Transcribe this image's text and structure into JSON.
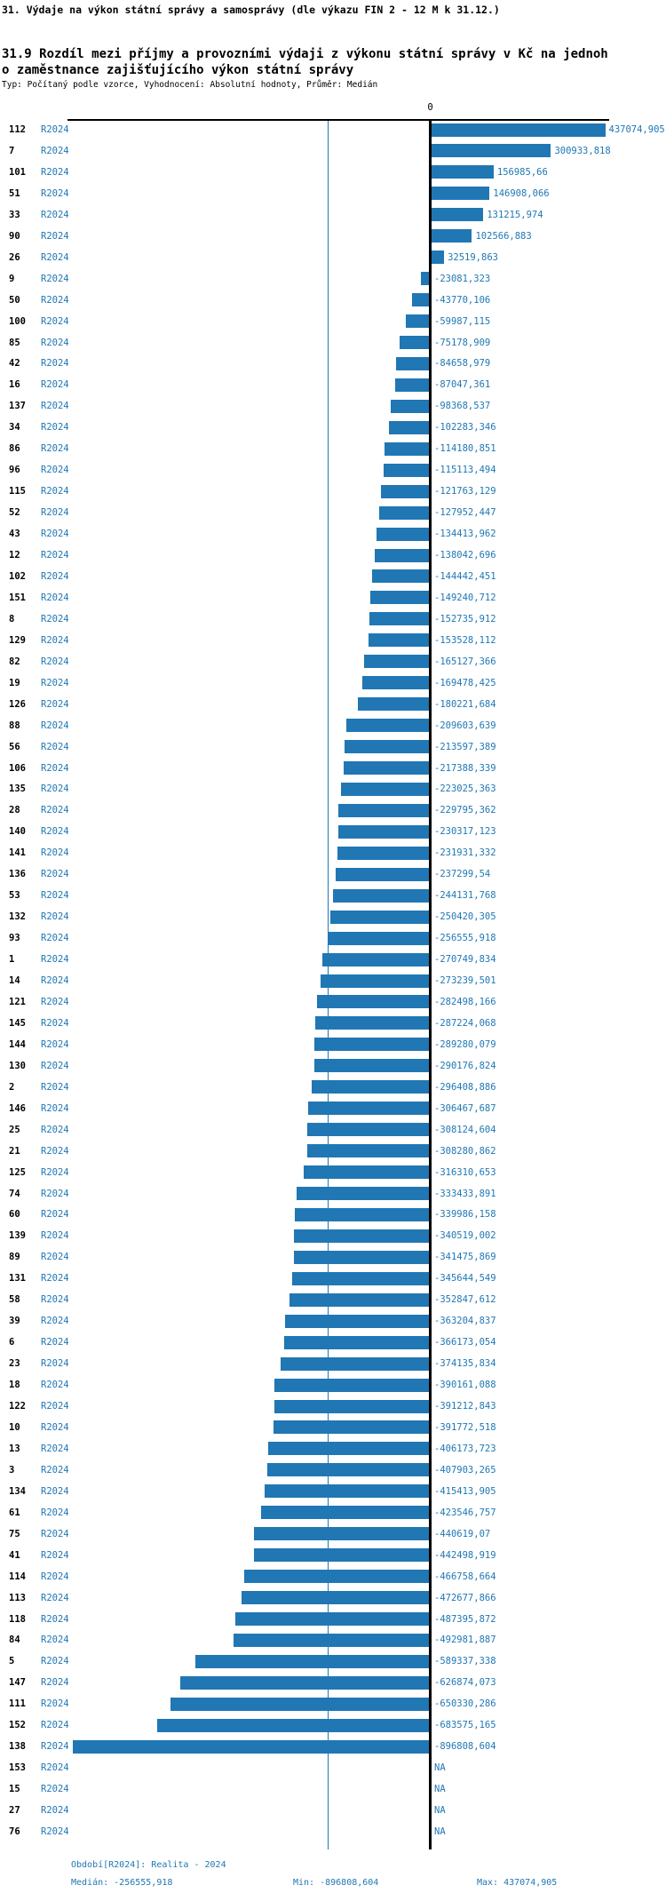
{
  "header": {
    "title": "31. Výdaje na výkon státní správy a samosprávy (dle výkazu FIN 2 - 12 M k 31.12.)",
    "subtitle": "31.9 Rozdíl mezi příjmy a provozními výdaji z výkonu státní správy v Kč na jednoho zaměstnance zajišťujícího výkon státní správy",
    "meta": "Typ: Počítaný podle vzorce, Vyhodnocení: Absolutní hodnoty, Průměr: Medián"
  },
  "axis": {
    "zero_label": "0"
  },
  "footer": {
    "period": "Období[R2024]: Realita - 2024",
    "median": "Medián: -256555,918",
    "min": "Min: -896808,604",
    "max": "Max: 437074,905"
  },
  "colors": {
    "bar": "#2077b4",
    "text_blue": "#1f77b4",
    "median_line": "#2077b4",
    "axis": "#000000"
  },
  "chart_data": {
    "type": "bar",
    "orientation": "horizontal",
    "title": "31.9 Rozdíl mezi příjmy a provozními výdaji z výkonu státní správy v Kč na jednoho zaměstnance zajišťujícího výkon státní správy",
    "series_label": "R2024",
    "grid": false,
    "xlim": [
      -910000,
      445000
    ],
    "median": -256555.918,
    "min": -896808.604,
    "max": 437074.905,
    "na_text": "NA",
    "rows": [
      {
        "id": "112",
        "period": "R2024",
        "label": "437074,905",
        "value": 437074.905
      },
      {
        "id": "7",
        "period": "R2024",
        "label": "300933,818",
        "value": 300933.818
      },
      {
        "id": "101",
        "period": "R2024",
        "label": "156985,66",
        "value": 156985.66
      },
      {
        "id": "51",
        "period": "R2024",
        "label": "146908,066",
        "value": 146908.066
      },
      {
        "id": "33",
        "period": "R2024",
        "label": "131215,974",
        "value": 131215.974
      },
      {
        "id": "90",
        "period": "R2024",
        "label": "102566,883",
        "value": 102566.883
      },
      {
        "id": "26",
        "period": "R2024",
        "label": "32519,863",
        "value": 32519.863
      },
      {
        "id": "9",
        "period": "R2024",
        "label": "-23081,323",
        "value": -23081.323
      },
      {
        "id": "50",
        "period": "R2024",
        "label": "-43770,106",
        "value": -43770.106
      },
      {
        "id": "100",
        "period": "R2024",
        "label": "-59987,115",
        "value": -59987.115
      },
      {
        "id": "85",
        "period": "R2024",
        "label": "-75178,909",
        "value": -75178.909
      },
      {
        "id": "42",
        "period": "R2024",
        "label": "-84658,979",
        "value": -84658.979
      },
      {
        "id": "16",
        "period": "R2024",
        "label": "-87047,361",
        "value": -87047.361
      },
      {
        "id": "137",
        "period": "R2024",
        "label": "-98368,537",
        "value": -98368.537
      },
      {
        "id": "34",
        "period": "R2024",
        "label": "-102283,346",
        "value": -102283.346
      },
      {
        "id": "86",
        "period": "R2024",
        "label": "-114180,851",
        "value": -114180.851
      },
      {
        "id": "96",
        "period": "R2024",
        "label": "-115113,494",
        "value": -115113.494
      },
      {
        "id": "115",
        "period": "R2024",
        "label": "-121763,129",
        "value": -121763.129
      },
      {
        "id": "52",
        "period": "R2024",
        "label": "-127952,447",
        "value": -127952.447
      },
      {
        "id": "43",
        "period": "R2024",
        "label": "-134413,962",
        "value": -134413.962
      },
      {
        "id": "12",
        "period": "R2024",
        "label": "-138042,696",
        "value": -138042.696
      },
      {
        "id": "102",
        "period": "R2024",
        "label": "-144442,451",
        "value": -144442.451
      },
      {
        "id": "151",
        "period": "R2024",
        "label": "-149240,712",
        "value": -149240.712
      },
      {
        "id": "8",
        "period": "R2024",
        "label": "-152735,912",
        "value": -152735.912
      },
      {
        "id": "129",
        "period": "R2024",
        "label": "-153528,112",
        "value": -153528.112
      },
      {
        "id": "82",
        "period": "R2024",
        "label": "-165127,366",
        "value": -165127.366
      },
      {
        "id": "19",
        "period": "R2024",
        "label": "-169478,425",
        "value": -169478.425
      },
      {
        "id": "126",
        "period": "R2024",
        "label": "-180221,684",
        "value": -180221.684
      },
      {
        "id": "88",
        "period": "R2024",
        "label": "-209603,639",
        "value": -209603.639
      },
      {
        "id": "56",
        "period": "R2024",
        "label": "-213597,389",
        "value": -213597.389
      },
      {
        "id": "106",
        "period": "R2024",
        "label": "-217388,339",
        "value": -217388.339
      },
      {
        "id": "135",
        "period": "R2024",
        "label": "-223025,363",
        "value": -223025.363
      },
      {
        "id": "28",
        "period": "R2024",
        "label": "-229795,362",
        "value": -229795.362
      },
      {
        "id": "140",
        "period": "R2024",
        "label": "-230317,123",
        "value": -230317.123
      },
      {
        "id": "141",
        "period": "R2024",
        "label": "-231931,332",
        "value": -231931.332
      },
      {
        "id": "136",
        "period": "R2024",
        "label": "-237299,54",
        "value": -237299.54
      },
      {
        "id": "53",
        "period": "R2024",
        "label": "-244131,768",
        "value": -244131.768
      },
      {
        "id": "132",
        "period": "R2024",
        "label": "-250420,305",
        "value": -250420.305
      },
      {
        "id": "93",
        "period": "R2024",
        "label": "-256555,918",
        "value": -256555.918
      },
      {
        "id": "1",
        "period": "R2024",
        "label": "-270749,834",
        "value": -270749.834
      },
      {
        "id": "14",
        "period": "R2024",
        "label": "-273239,501",
        "value": -273239.501
      },
      {
        "id": "121",
        "period": "R2024",
        "label": "-282498,166",
        "value": -282498.166
      },
      {
        "id": "145",
        "period": "R2024",
        "label": "-287224,068",
        "value": -287224.068
      },
      {
        "id": "144",
        "period": "R2024",
        "label": "-289280,079",
        "value": -289280.079
      },
      {
        "id": "130",
        "period": "R2024",
        "label": "-290176,824",
        "value": -290176.824
      },
      {
        "id": "2",
        "period": "R2024",
        "label": "-296408,886",
        "value": -296408.886
      },
      {
        "id": "146",
        "period": "R2024",
        "label": "-306467,687",
        "value": -306467.687
      },
      {
        "id": "25",
        "period": "R2024",
        "label": "-308124,604",
        "value": -308124.604
      },
      {
        "id": "21",
        "period": "R2024",
        "label": "-308280,862",
        "value": -308280.862
      },
      {
        "id": "125",
        "period": "R2024",
        "label": "-316310,653",
        "value": -316310.653
      },
      {
        "id": "74",
        "period": "R2024",
        "label": "-333433,891",
        "value": -333433.891
      },
      {
        "id": "60",
        "period": "R2024",
        "label": "-339986,158",
        "value": -339986.158
      },
      {
        "id": "139",
        "period": "R2024",
        "label": "-340519,002",
        "value": -340519.002
      },
      {
        "id": "89",
        "period": "R2024",
        "label": "-341475,869",
        "value": -341475.869
      },
      {
        "id": "131",
        "period": "R2024",
        "label": "-345644,549",
        "value": -345644.549
      },
      {
        "id": "58",
        "period": "R2024",
        "label": "-352847,612",
        "value": -352847.612
      },
      {
        "id": "39",
        "period": "R2024",
        "label": "-363204,837",
        "value": -363204.837
      },
      {
        "id": "6",
        "period": "R2024",
        "label": "-366173,054",
        "value": -366173.054
      },
      {
        "id": "23",
        "period": "R2024",
        "label": "-374135,834",
        "value": -374135.834
      },
      {
        "id": "18",
        "period": "R2024",
        "label": "-390161,088",
        "value": -390161.088
      },
      {
        "id": "122",
        "period": "R2024",
        "label": "-391212,843",
        "value": -391212.843
      },
      {
        "id": "10",
        "period": "R2024",
        "label": "-391772,518",
        "value": -391772.518
      },
      {
        "id": "13",
        "period": "R2024",
        "label": "-406173,723",
        "value": -406173.723
      },
      {
        "id": "3",
        "period": "R2024",
        "label": "-407903,265",
        "value": -407903.265
      },
      {
        "id": "134",
        "period": "R2024",
        "label": "-415413,905",
        "value": -415413.905
      },
      {
        "id": "61",
        "period": "R2024",
        "label": "-423546,757",
        "value": -423546.757
      },
      {
        "id": "75",
        "period": "R2024",
        "label": "-440619,07",
        "value": -440619.07
      },
      {
        "id": "41",
        "period": "R2024",
        "label": "-442498,919",
        "value": -442498.919
      },
      {
        "id": "114",
        "period": "R2024",
        "label": "-466758,664",
        "value": -466758.664
      },
      {
        "id": "113",
        "period": "R2024",
        "label": "-472677,866",
        "value": -472677.866
      },
      {
        "id": "118",
        "period": "R2024",
        "label": "-487395,872",
        "value": -487395.872
      },
      {
        "id": "84",
        "period": "R2024",
        "label": "-492981,887",
        "value": -492981.887
      },
      {
        "id": "5",
        "period": "R2024",
        "label": "-589337,338",
        "value": -589337.338
      },
      {
        "id": "147",
        "period": "R2024",
        "label": "-626874,073",
        "value": -626874.073
      },
      {
        "id": "111",
        "period": "R2024",
        "label": "-650330,286",
        "value": -650330.286
      },
      {
        "id": "152",
        "period": "R2024",
        "label": "-683575,165",
        "value": -683575.165
      },
      {
        "id": "138",
        "period": "R2024",
        "label": "-896808,604",
        "value": -896808.604
      },
      {
        "id": "153",
        "period": "R2024",
        "label": "NA",
        "value": null
      },
      {
        "id": "15",
        "period": "R2024",
        "label": "NA",
        "value": null
      },
      {
        "id": "27",
        "period": "R2024",
        "label": "NA",
        "value": null
      },
      {
        "id": "76",
        "period": "R2024",
        "label": "NA",
        "value": null
      }
    ]
  }
}
